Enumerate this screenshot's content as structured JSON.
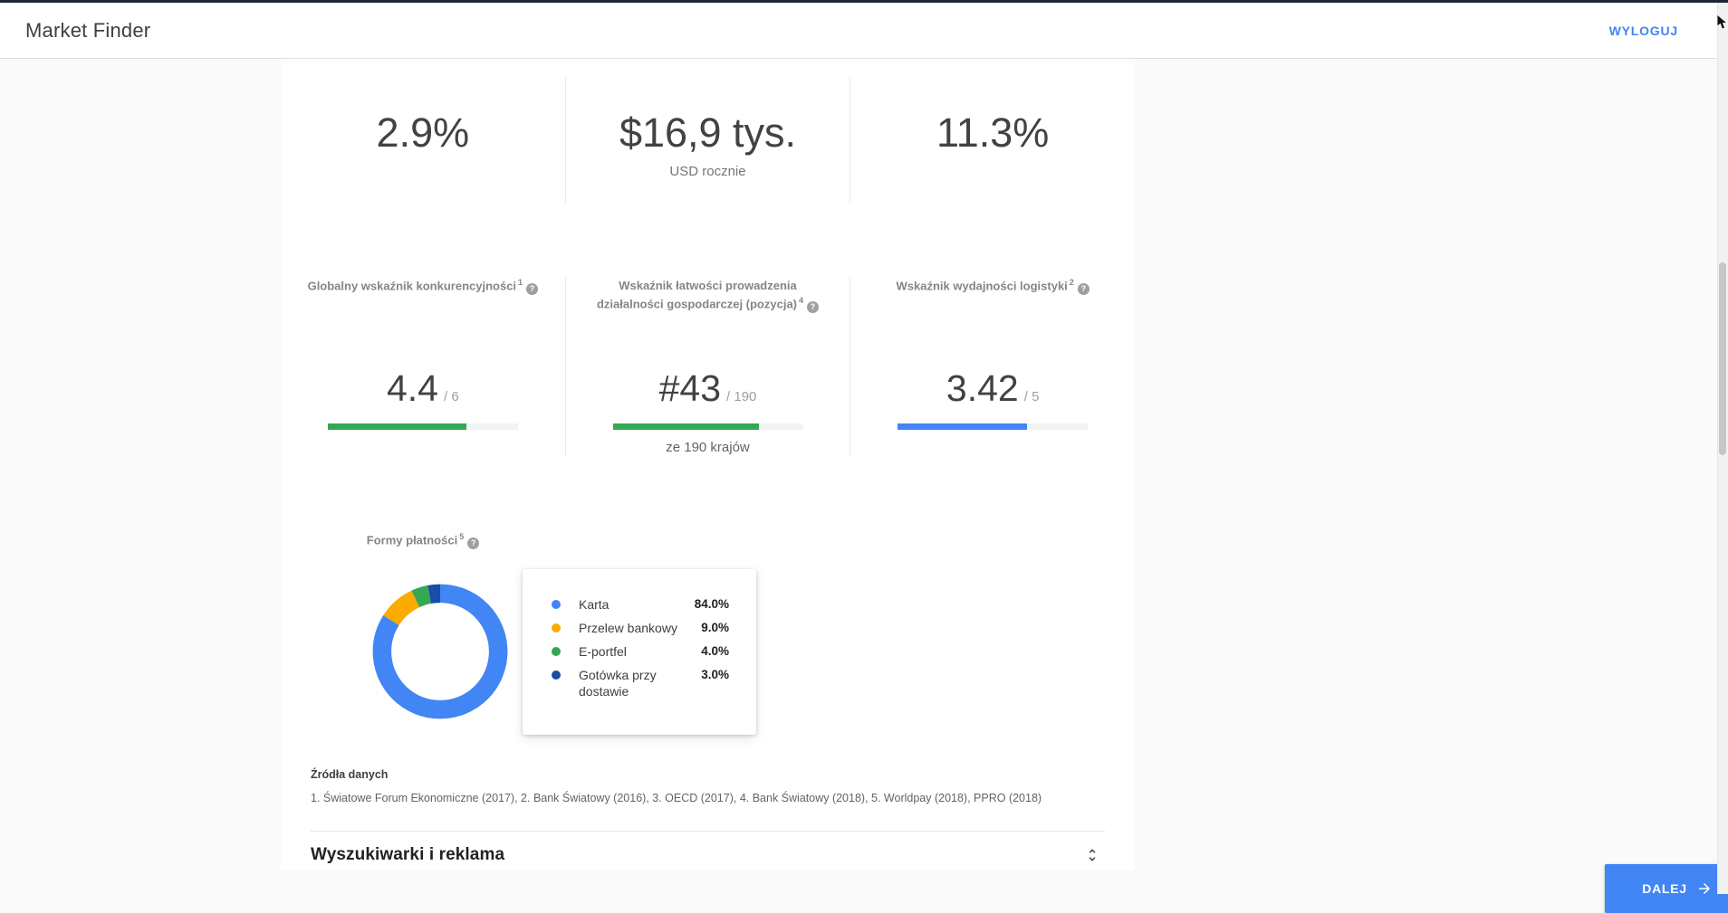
{
  "header": {
    "title": "Market Finder",
    "logout_label": "WYLOGUJ"
  },
  "stats": [
    {
      "value": "2.9%",
      "subtitle": ""
    },
    {
      "value": "$16,9 tys.",
      "subtitle": "USD rocznie"
    },
    {
      "value": "11.3%",
      "subtitle": ""
    }
  ],
  "indicators": [
    {
      "label": "Globalny wskaźnik konkurencyjności",
      "footnote": "1",
      "value": "4.4",
      "denominator": "/ 6",
      "bar_percent": 73,
      "bar_color": "#34a853",
      "note": ""
    },
    {
      "label": "Wskaźnik łatwości prowadzenia działalności gospodarczej (pozycja)",
      "footnote": "4",
      "value": "#43",
      "denominator": "/ 190",
      "bar_percent": 77,
      "bar_color": "#34a853",
      "note": "ze 190 krajów"
    },
    {
      "label": "Wskaźnik wydajności logistyki",
      "footnote": "2",
      "value": "3.42",
      "denominator": "/ 5",
      "bar_percent": 68,
      "bar_color": "#4285f4",
      "note": ""
    }
  ],
  "payments": {
    "label": "Formy płatności",
    "footnote": "5",
    "legend": [
      {
        "label": "Karta",
        "value": "84.0%",
        "color": "#4285f4"
      },
      {
        "label": "Przelew bankowy",
        "value": "9.0%",
        "color": "#f9ab00"
      },
      {
        "label": "E-portfel",
        "value": "4.0%",
        "color": "#34a853"
      },
      {
        "label": "Gotówka przy dostawie",
        "value": "3.0%",
        "color": "#174ea6"
      }
    ]
  },
  "chart_data": {
    "type": "pie",
    "donut": true,
    "title": "Formy płatności",
    "categories": [
      "Karta",
      "Przelew bankowy",
      "E-portfel",
      "Gotówka przy dostawie"
    ],
    "values": [
      84.0,
      9.0,
      4.0,
      3.0
    ],
    "unit": "%",
    "colors": [
      "#4285f4",
      "#f9ab00",
      "#34a853",
      "#174ea6"
    ],
    "legend_position": "right",
    "start_angle_deg": 0,
    "direction": "clockwise"
  },
  "sources": {
    "title": "Źródła danych",
    "text": "1. Światowe Forum Ekonomiczne (2017), 2. Bank Światowy (2016), 3. OECD (2017), 4. Bank Światowy (2018), 5. Worldpay (2018), PPRO (2018)"
  },
  "next_section": {
    "title": "Wyszukiwarki i reklama"
  },
  "footer": {
    "next_label": "DALEJ"
  },
  "colors": {
    "accent_blue": "#4285f4",
    "green": "#34a853",
    "orange": "#f9ab00",
    "navy": "#174ea6"
  }
}
